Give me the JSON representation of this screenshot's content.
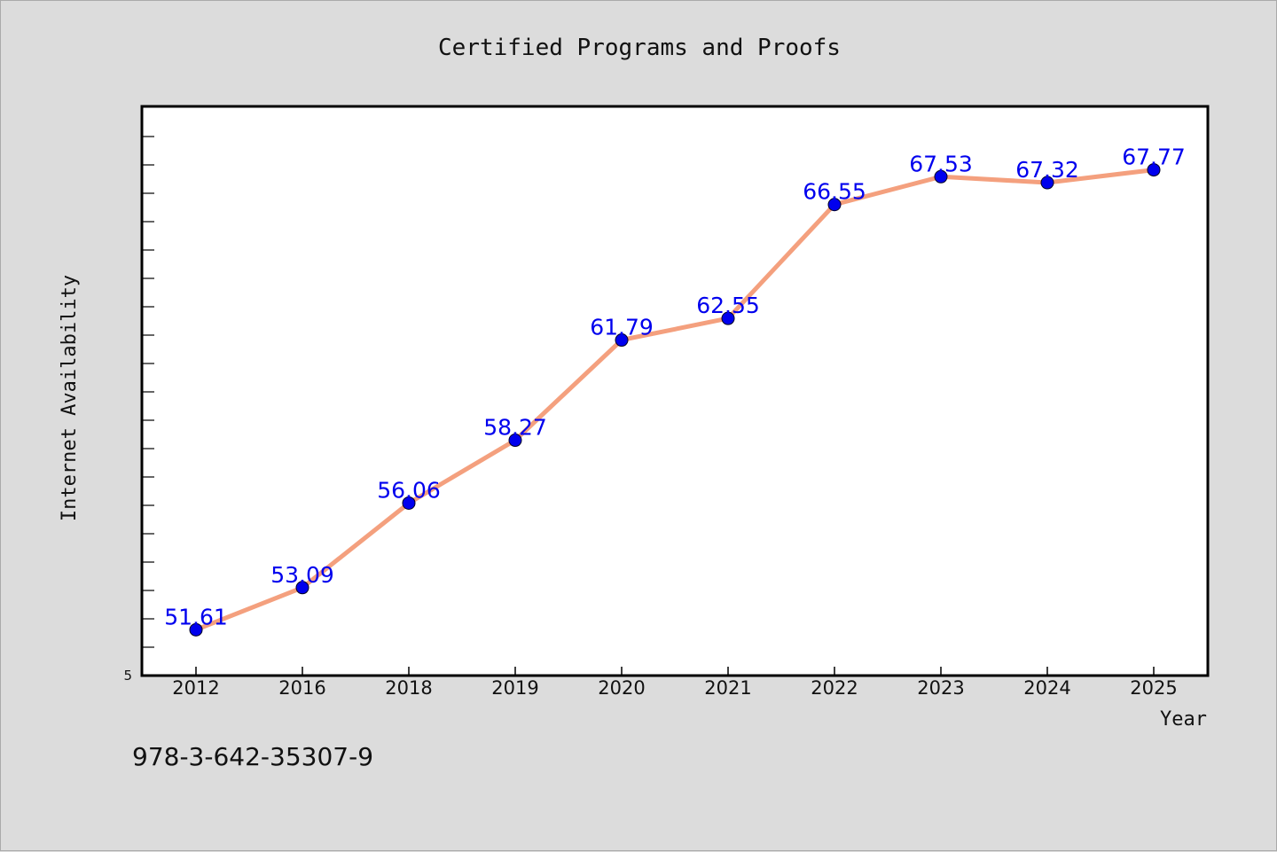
{
  "chart_data": {
    "type": "line",
    "title": "Certified Programs and Proofs",
    "xlabel": "Year",
    "ylabel": "Internet Availability",
    "categories": [
      "2012",
      "2016",
      "2018",
      "2019",
      "2020",
      "2021",
      "2022",
      "2023",
      "2024",
      "2025"
    ],
    "series": [
      {
        "values": [
          51.61,
          53.09,
          56.06,
          58.27,
          61.79,
          62.55,
          66.55,
          67.53,
          67.32,
          67.77
        ]
      }
    ],
    "yticks": [
      "5"
    ],
    "ylim": [
      50.0,
      70.0
    ],
    "grid": false,
    "line_color": "#f4a07e",
    "marker_color": "#0000ee",
    "label_color": "#0000ee"
  },
  "footer": {
    "isbn": "978-3-642-35307-9"
  }
}
